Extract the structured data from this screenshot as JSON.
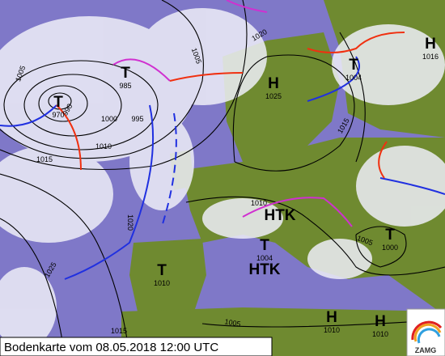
{
  "caption": "Bodenkarte vom 08.05.2018 12:00 UTC",
  "logo": "ZAMG",
  "pressure_centers": [
    {
      "label": "T",
      "value": "970"
    },
    {
      "label": "T",
      "value": "985"
    },
    {
      "label": "H",
      "value": "1025"
    },
    {
      "label": "T",
      "value": "1004"
    },
    {
      "label": "H",
      "value": "1016"
    },
    {
      "label": "HTK"
    },
    {
      "label": "T",
      "value": "1004"
    },
    {
      "label": "HTK"
    },
    {
      "label": "T",
      "value": "1010"
    },
    {
      "label": "T",
      "value": "1000"
    },
    {
      "label": "H",
      "value": "1010"
    },
    {
      "label": "H",
      "value": "1010"
    }
  ],
  "isobar_labels": [
    "1005",
    "990",
    "1000",
    "995",
    "1010",
    "1015",
    "1005",
    "1020",
    "1020",
    "1025",
    "1015",
    "1005",
    "1005",
    "1015",
    "1010"
  ]
}
